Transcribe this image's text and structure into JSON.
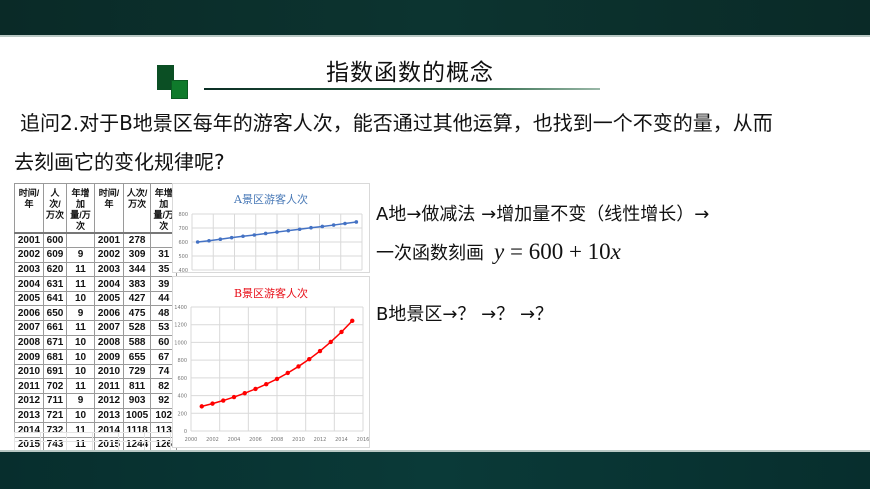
{
  "slide": {
    "title": "指数函数的概念",
    "question_line1": "追问2.对于B地景区每年的游客人次，能否通过其他运算，也找到一个不变的量，从而",
    "question_line2": "去刻画它的变化规律呢?"
  },
  "table": {
    "headers": [
      "时间/年",
      "人次/万次",
      "年增加量/万次",
      "时间/年",
      "人次/万次",
      "年增加量/万次"
    ],
    "header_lines": [
      [
        "时间/年",
        ""
      ],
      [
        "人次/",
        "万次"
      ],
      [
        "年增加",
        "量/万次"
      ],
      [
        "时间/年",
        ""
      ],
      [
        "人次/",
        "万次"
      ],
      [
        "年增加",
        "量/万次"
      ]
    ],
    "rows": [
      [
        "2001",
        "600",
        "",
        "2001",
        "278",
        ""
      ],
      [
        "2002",
        "609",
        "9",
        "2002",
        "309",
        "31"
      ],
      [
        "2003",
        "620",
        "11",
        "2003",
        "344",
        "35"
      ],
      [
        "2004",
        "631",
        "11",
        "2004",
        "383",
        "39"
      ],
      [
        "2005",
        "641",
        "10",
        "2005",
        "427",
        "44"
      ],
      [
        "2006",
        "650",
        "9",
        "2006",
        "475",
        "48"
      ],
      [
        "2007",
        "661",
        "11",
        "2007",
        "528",
        "53"
      ],
      [
        "2008",
        "671",
        "10",
        "2008",
        "588",
        "60"
      ],
      [
        "2009",
        "681",
        "10",
        "2009",
        "655",
        "67"
      ],
      [
        "2010",
        "691",
        "10",
        "2010",
        "729",
        "74"
      ],
      [
        "2011",
        "702",
        "11",
        "2011",
        "811",
        "82"
      ],
      [
        "2012",
        "711",
        "9",
        "2012",
        "903",
        "92"
      ],
      [
        "2013",
        "721",
        "10",
        "2013",
        "1005",
        "102"
      ],
      [
        "2014",
        "732",
        "11",
        "2014",
        "1118",
        "113"
      ],
      [
        "2015",
        "743",
        "11",
        "2015",
        "1244",
        "126"
      ]
    ]
  },
  "chart_data": [
    {
      "type": "line",
      "title": "A景区游客人次",
      "color": "#4472c4",
      "x": [
        2001,
        2002,
        2003,
        2004,
        2005,
        2006,
        2007,
        2008,
        2009,
        2010,
        2011,
        2012,
        2013,
        2014,
        2015
      ],
      "values": [
        600,
        609,
        620,
        631,
        641,
        650,
        661,
        671,
        681,
        691,
        702,
        711,
        721,
        732,
        743
      ],
      "ylim": [
        400,
        800
      ],
      "yticks": [
        "800",
        "700",
        "600",
        "500",
        "400"
      ],
      "xlabel": "",
      "ylabel": "",
      "grid": true
    },
    {
      "type": "line",
      "title": "B景区游客人次",
      "color": "#ff0000",
      "x": [
        2001,
        2002,
        2003,
        2004,
        2005,
        2006,
        2007,
        2008,
        2009,
        2010,
        2011,
        2012,
        2013,
        2014,
        2015
      ],
      "values": [
        278,
        309,
        344,
        383,
        427,
        475,
        528,
        588,
        655,
        729,
        811,
        903,
        1005,
        1118,
        1244
      ],
      "ylim": [
        0,
        1400
      ],
      "xlim": [
        2000,
        2016
      ],
      "yticks": [
        "1400",
        "1200",
        "1000",
        "800",
        "600",
        "400",
        "200",
        "0"
      ],
      "xticks": [
        "2000",
        "2002",
        "2004",
        "2006",
        "2008",
        "2010",
        "2012",
        "2014",
        "2016"
      ],
      "xlabel": "",
      "ylabel": "",
      "grid": true
    }
  ],
  "notes": {
    "a_line1": "A地→做减法 →增加量不变（线性增长）→",
    "a_line2": "一次函数刻画",
    "formula_y": "y",
    "formula_mid": " = 600 + 10",
    "formula_x": "x",
    "b_line": "B地景区→？ →？ →？"
  }
}
